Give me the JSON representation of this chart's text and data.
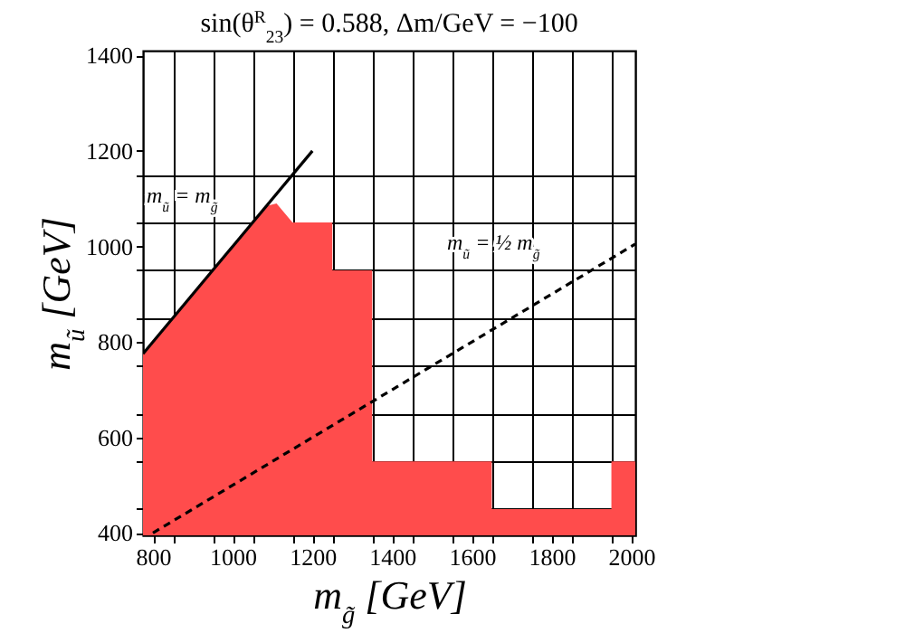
{
  "chart_data": {
    "type": "area",
    "title": "sin(θ$^{R}$$_{23}$) = 0.588, Δm/GeV = −100",
    "xlabel": "m$_{g̃}$ [GeV]",
    "ylabel": "m$_{ũ}$ [GeV]",
    "xlim": [
      775,
      2010
    ],
    "ylim": [
      395,
      1410
    ],
    "xticks": [
      800,
      {
        "value": 850,
        "label": null
      },
      {
        "value": 950,
        "label": null
      },
      1000,
      {
        "value": 1050,
        "label": null
      },
      {
        "value": 1150,
        "label": null
      },
      1200,
      {
        "value": 1250,
        "label": null
      },
      {
        "value": 1350,
        "label": null
      },
      1400,
      {
        "value": 1450,
        "label": null
      },
      {
        "value": 1550,
        "label": null
      },
      1600,
      {
        "value": 1650,
        "label": null
      },
      {
        "value": 1750,
        "label": null
      },
      1800,
      {
        "value": 1850,
        "label": null
      },
      {
        "value": 1950,
        "label": null
      },
      2000
    ],
    "yticks": [
      400,
      {
        "value": 450,
        "label": null
      },
      {
        "value": 550,
        "label": null
      },
      600,
      {
        "value": 650,
        "label": null
      },
      {
        "value": 750,
        "label": null
      },
      800,
      {
        "value": 850,
        "label": null
      },
      {
        "value": 950,
        "label": null
      },
      1000,
      {
        "value": 1050,
        "label": null
      },
      {
        "value": 1150,
        "label": null
      },
      1200,
      1400
    ],
    "grid": true,
    "series": [
      {
        "color": "#ff4c4c",
        "x": [
          775,
          1085,
          1110,
          1140,
          1150,
          1250,
          1250,
          1350,
          1350,
          1650,
          1650,
          1950,
          1950,
          2010
        ],
        "values": [
          775,
          1085,
          1090,
          1060,
          1050,
          1050,
          950,
          950,
          550,
          550,
          450,
          450,
          550,
          550
        ]
      },
      {
        "type": "line",
        "color": "#000000",
        "line_style": "solid",
        "x": [
          775,
          1200
        ],
        "values": [
          775,
          1200
        ]
      },
      {
        "type": "line",
        "color": "#000000",
        "line_style": "dashed",
        "x": [
          800,
          2010
        ],
        "values": [
          400,
          1005
        ]
      }
    ],
    "annotations": [
      "m$_{ũ}$ = m$_{g̃}$",
      "m$_{ũ}$ = ½ m$_{g̃}$"
    ]
  }
}
